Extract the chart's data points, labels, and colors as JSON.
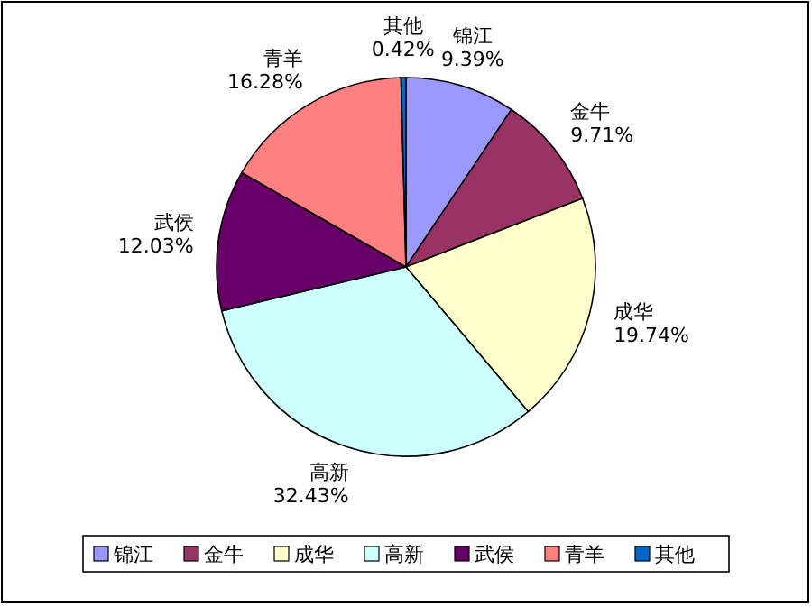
{
  "chart_data": {
    "type": "pie",
    "categories": [
      "锦江",
      "金牛",
      "成华",
      "高新",
      "武侯",
      "青羊",
      "其他"
    ],
    "values": [
      9.39,
      9.71,
      19.74,
      32.43,
      12.03,
      16.28,
      0.42
    ],
    "value_labels": [
      "9.39%",
      "9.71%",
      "19.74%",
      "32.43%",
      "12.03%",
      "16.28%",
      "0.42%"
    ],
    "colors": [
      "#9999ff",
      "#993366",
      "#ffffcc",
      "#ccffff",
      "#660066",
      "#ff8080",
      "#0066cc"
    ],
    "legend": "bottom"
  }
}
